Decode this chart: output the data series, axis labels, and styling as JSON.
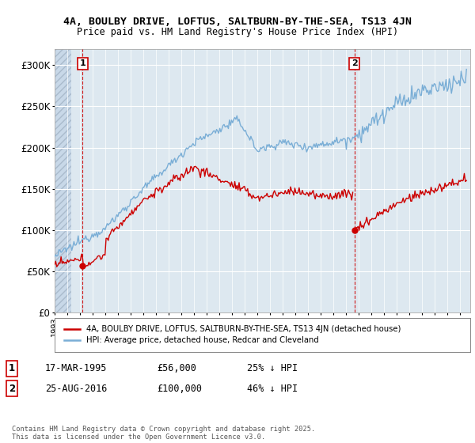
{
  "title_line1": "4A, BOULBY DRIVE, LOFTUS, SALTBURN-BY-THE-SEA, TS13 4JN",
  "title_line2": "Price paid vs. HM Land Registry's House Price Index (HPI)",
  "background_color": "#ffffff",
  "plot_bg_color": "#dde8f0",
  "hpi_color": "#7aaed6",
  "price_color": "#cc0000",
  "transaction1": {
    "date": "17-MAR-1995",
    "price": 56000,
    "pct": "25% ↓ HPI"
  },
  "transaction2": {
    "date": "25-AUG-2016",
    "price": 100000,
    "pct": "46% ↓ HPI"
  },
  "legend_label_price": "4A, BOULBY DRIVE, LOFTUS, SALTBURN-BY-THE-SEA, TS13 4JN (detached house)",
  "legend_label_hpi": "HPI: Average price, detached house, Redcar and Cleveland",
  "footer": "Contains HM Land Registry data © Crown copyright and database right 2025.\nThis data is licensed under the Open Government Licence v3.0.",
  "ylim": [
    0,
    320000
  ],
  "yticks": [
    0,
    50000,
    100000,
    150000,
    200000,
    250000,
    300000
  ],
  "ytick_labels": [
    "£0",
    "£50K",
    "£100K",
    "£150K",
    "£200K",
    "£250K",
    "£300K"
  ],
  "t1_year": 1995.21,
  "t2_year": 2016.65
}
